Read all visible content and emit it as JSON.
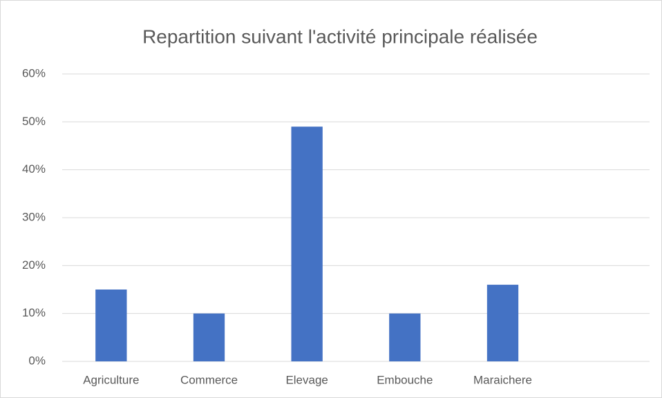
{
  "chart_data": {
    "type": "bar",
    "title": "Repartition suivant l'activité principale réalisée",
    "categories": [
      "Agriculture",
      "Commerce",
      "Elevage",
      "Embouche",
      "Maraichere",
      null
    ],
    "values": [
      15,
      10,
      49,
      10,
      16,
      null
    ],
    "color": "#4472c4",
    "ylim": [
      0,
      60
    ],
    "yticks": [
      {
        "value": 0,
        "label": "0%"
      },
      {
        "value": 10,
        "label": "10%"
      },
      {
        "value": 20,
        "label": "20%"
      },
      {
        "value": 30,
        "label": "30%"
      },
      {
        "value": 40,
        "label": "40%"
      },
      {
        "value": 50,
        "label": "50%"
      },
      {
        "value": 60,
        "label": "60%"
      }
    ],
    "grid": true
  }
}
